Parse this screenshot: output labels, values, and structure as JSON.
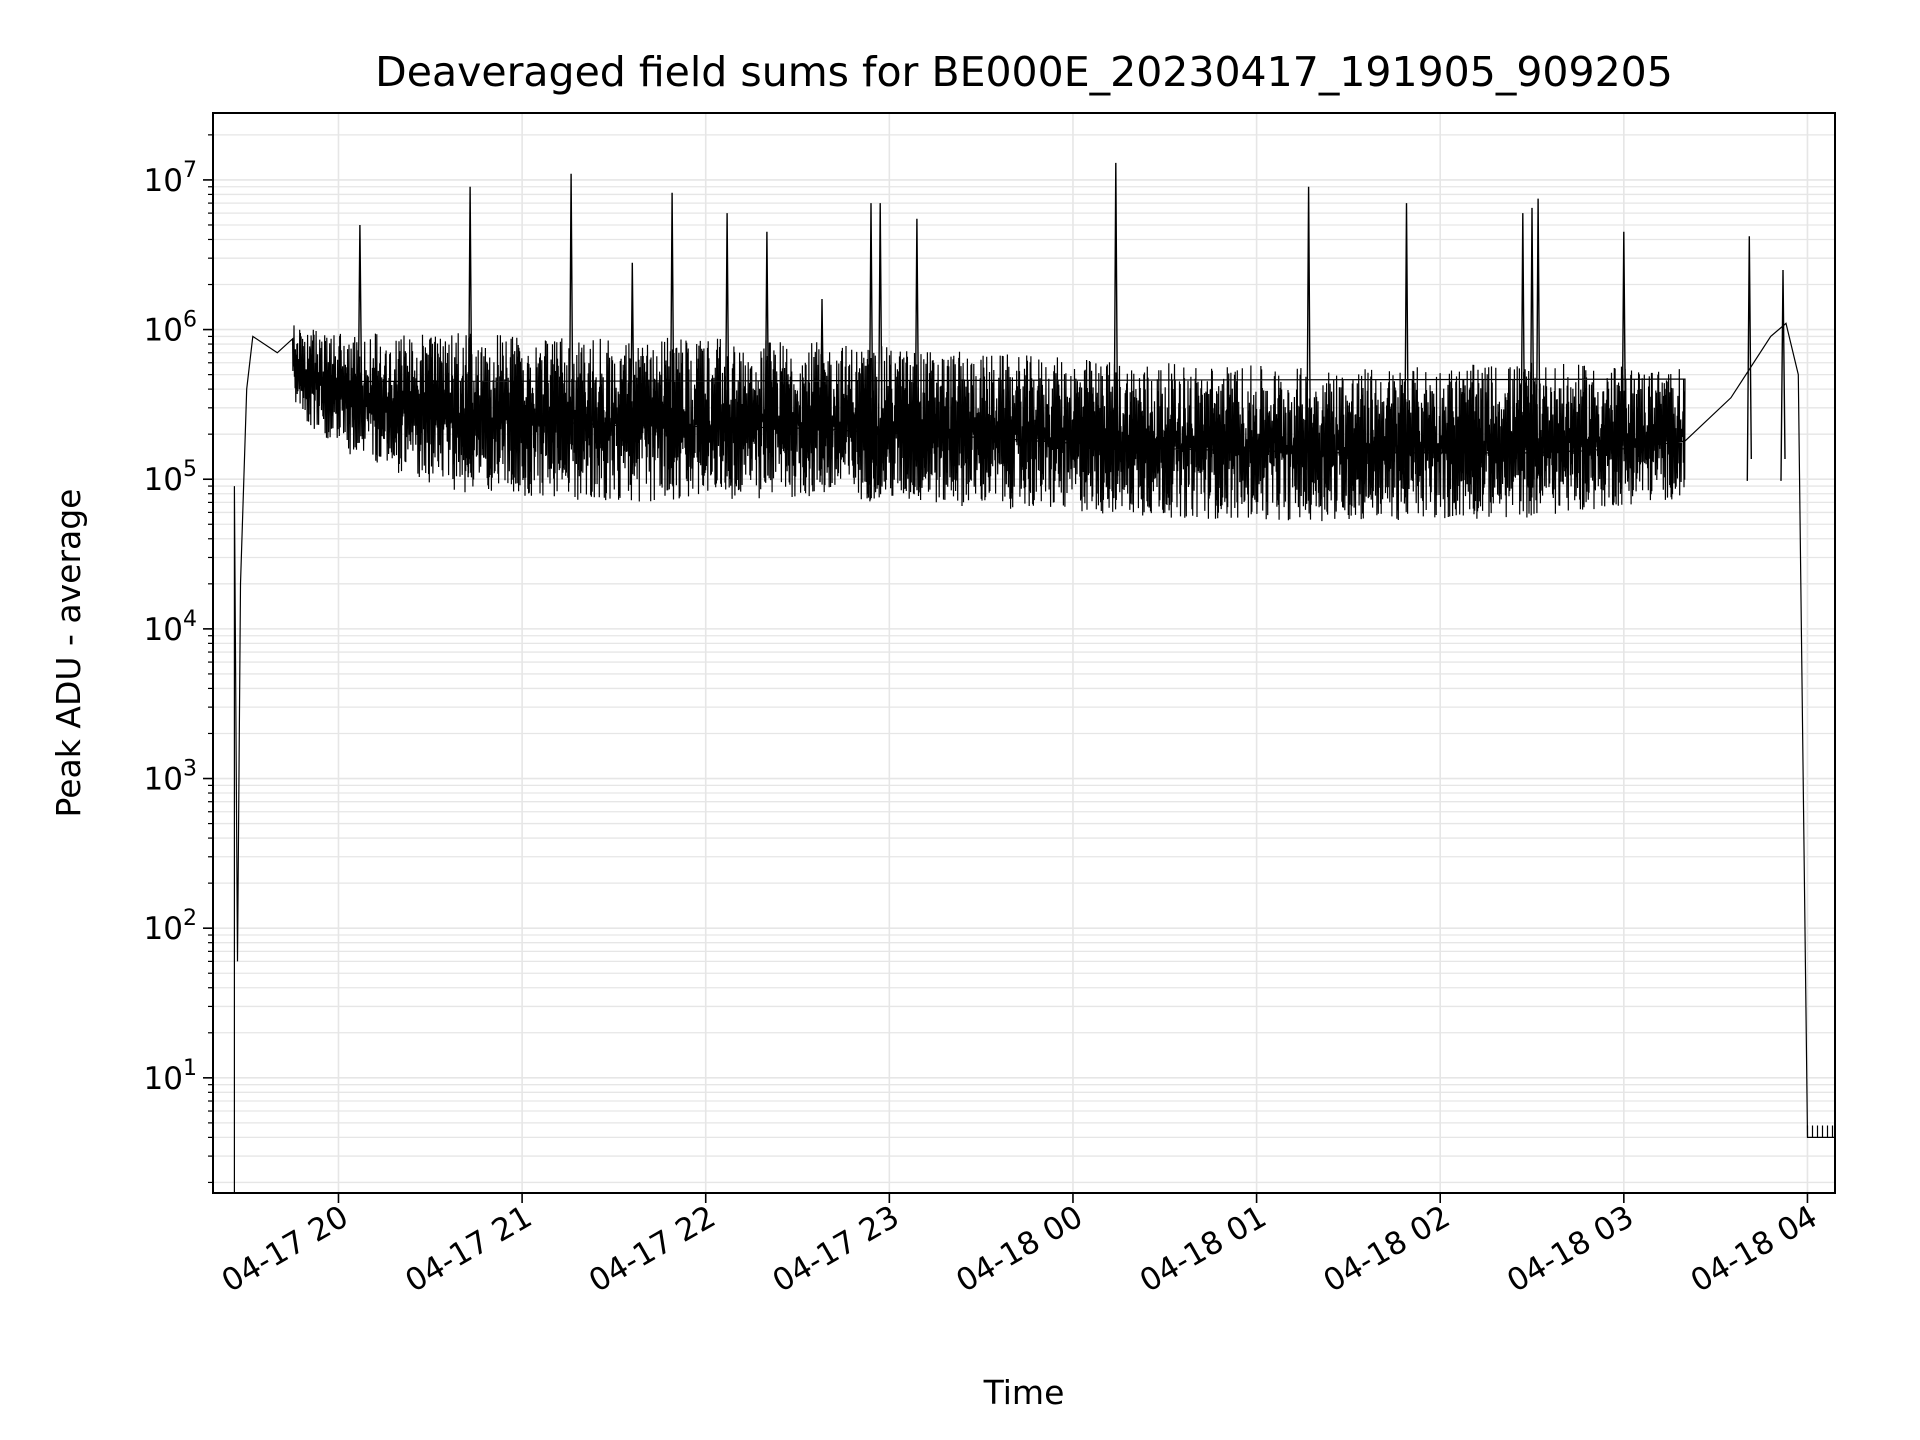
{
  "chart_data": {
    "type": "line",
    "title": "Deaveraged field sums for BE000E_20230417_191905_909205",
    "xlabel": "Time",
    "ylabel": "Peak ADU - average",
    "yscale": "log",
    "ylim": [
      1.7,
      28000000
    ],
    "xlim": [
      "2023-04-17 19:19",
      "2023-04-18 04:09"
    ],
    "grid": true,
    "grid_minor": true,
    "line_color": "#000000",
    "grid_color": "#e6e6e6",
    "x_ticks": [
      {
        "t": "2023-04-17 20:00",
        "label": "04-17 20"
      },
      {
        "t": "2023-04-17 21:00",
        "label": "04-17 21"
      },
      {
        "t": "2023-04-17 22:00",
        "label": "04-17 22"
      },
      {
        "t": "2023-04-17 23:00",
        "label": "04-17 23"
      },
      {
        "t": "2023-04-18 00:00",
        "label": "04-18 00"
      },
      {
        "t": "2023-04-18 01:00",
        "label": "04-18 01"
      },
      {
        "t": "2023-04-18 02:00",
        "label": "04-18 02"
      },
      {
        "t": "2023-04-18 03:00",
        "label": "04-18 03"
      },
      {
        "t": "2023-04-18 04:00",
        "label": "04-18 04"
      }
    ],
    "y_ticks": [
      {
        "v": 10,
        "base": "10",
        "exp": "1"
      },
      {
        "v": 100,
        "base": "10",
        "exp": "2"
      },
      {
        "v": 1000,
        "base": "10",
        "exp": "3"
      },
      {
        "v": 10000,
        "base": "10",
        "exp": "4"
      },
      {
        "v": 100000,
        "base": "10",
        "exp": "5"
      },
      {
        "v": 1000000,
        "base": "10",
        "exp": "6"
      },
      {
        "v": 10000000,
        "base": "10",
        "exp": "7"
      }
    ],
    "series": [
      {
        "baseline": [
          [
            "2023-04-17 19:26",
            1.7
          ],
          [
            "2023-04-17 19:26",
            90000
          ],
          [
            "2023-04-17 19:27",
            60
          ],
          [
            "2023-04-17 19:28",
            20000
          ],
          [
            "2023-04-17 19:30",
            400000
          ],
          [
            "2023-04-17 19:32",
            900000
          ],
          [
            "2023-04-17 19:40",
            700000
          ],
          [
            "2023-04-17 19:55",
            450000
          ],
          [
            "2023-04-17 20:10",
            320000
          ],
          [
            "2023-04-17 20:40",
            260000
          ],
          [
            "2023-04-17 21:30",
            230000
          ],
          [
            "2023-04-17 22:30",
            220000
          ],
          [
            "2023-04-17 23:30",
            190000
          ],
          [
            "2023-04-18 00:30",
            160000
          ],
          [
            "2023-04-18 01:30",
            150000
          ],
          [
            "2023-04-18 02:30",
            150000
          ],
          [
            "2023-04-18 03:00",
            160000
          ],
          [
            "2023-04-18 03:20",
            180000
          ],
          [
            "2023-04-18 03:35",
            350000
          ],
          [
            "2023-04-18 03:48",
            900000
          ],
          [
            "2023-04-18 03:53",
            1100000
          ],
          [
            "2023-04-18 03:57",
            500000
          ],
          [
            "2023-04-18 04:00",
            4
          ],
          [
            "2023-04-18 04:09",
            4
          ]
        ],
        "band_low": [
          [
            "2023-04-17 19:45",
            300000
          ],
          [
            "2023-04-17 20:00",
            150000
          ],
          [
            "2023-04-17 20:40",
            80000
          ],
          [
            "2023-04-17 21:30",
            70000
          ],
          [
            "2023-04-17 22:30",
            75000
          ],
          [
            "2023-04-17 23:30",
            65000
          ],
          [
            "2023-04-18 00:30",
            55000
          ],
          [
            "2023-04-18 01:30",
            52000
          ],
          [
            "2023-04-18 02:30",
            55000
          ],
          [
            "2023-04-18 03:20",
            75000
          ]
        ],
        "band_high": [
          [
            "2023-04-17 19:45",
            1100000
          ],
          [
            "2023-04-17 20:00",
            950000
          ],
          [
            "2023-04-17 20:40",
            950000
          ],
          [
            "2023-04-17 21:30",
            900000
          ],
          [
            "2023-04-17 22:30",
            850000
          ],
          [
            "2023-04-17 23:30",
            700000
          ],
          [
            "2023-04-18 00:30",
            600000
          ],
          [
            "2023-04-18 01:30",
            550000
          ],
          [
            "2023-04-18 02:30",
            600000
          ],
          [
            "2023-04-18 03:20",
            550000
          ]
        ],
        "spikes": [
          [
            "2023-04-17 20:07",
            5000000
          ],
          [
            "2023-04-17 20:43",
            9000000
          ],
          [
            "2023-04-17 21:16",
            11000000
          ],
          [
            "2023-04-17 21:36",
            2800000
          ],
          [
            "2023-04-17 21:49",
            8200000
          ],
          [
            "2023-04-17 22:07",
            6000000
          ],
          [
            "2023-04-17 22:20",
            4500000
          ],
          [
            "2023-04-17 22:38",
            1600000
          ],
          [
            "2023-04-17 22:54",
            7000000
          ],
          [
            "2023-04-17 22:57",
            7000000
          ],
          [
            "2023-04-17 23:09",
            5500000
          ],
          [
            "2023-04-18 00:14",
            13000000
          ],
          [
            "2023-04-18 01:17",
            9000000
          ],
          [
            "2023-04-18 01:49",
            7000000
          ],
          [
            "2023-04-18 02:27",
            6000000
          ],
          [
            "2023-04-18 02:30",
            6500000
          ],
          [
            "2023-04-18 02:32",
            7500000
          ],
          [
            "2023-04-18 03:00",
            4500000
          ],
          [
            "2023-04-18 03:41",
            4200000
          ],
          [
            "2023-04-18 03:52",
            2500000
          ]
        ]
      }
    ]
  }
}
